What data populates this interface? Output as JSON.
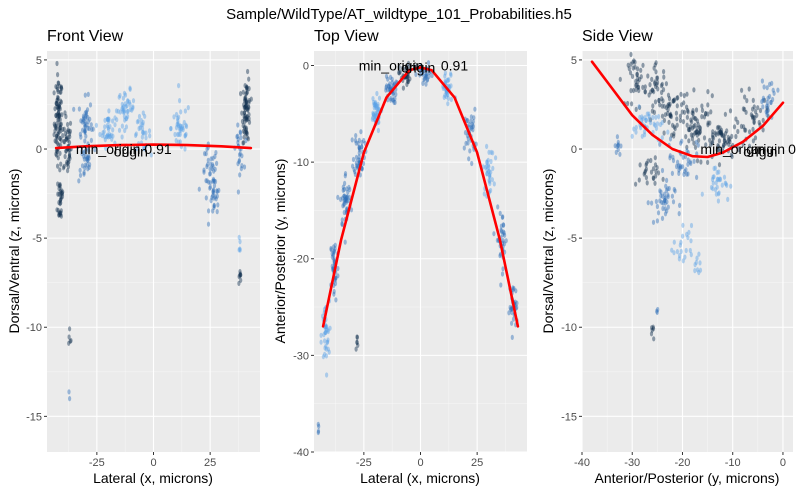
{
  "figure_title": "Sample/WildType/AT_wildtype_101_Probabilities.h5",
  "colors": {
    "panel_bg": "#ebebeb",
    "grid_major": "#ffffff",
    "fit_line": "#ff0000",
    "points_light": "#5aa2e6",
    "points_mid": "#2f6fb8",
    "points_dark": "#12304f"
  },
  "chart_data": [
    {
      "type": "scatter",
      "title": "Front View",
      "xlabel": "Lateral (x, microns)",
      "ylabel": "Dorsal/Ventral (z, microns)",
      "xlim": [
        -47,
        47
      ],
      "ylim": [
        -17,
        5.5
      ],
      "xticks": [
        -25,
        0,
        25
      ],
      "yticks": [
        -15,
        -10,
        -5,
        0,
        5
      ],
      "grid": true,
      "fit_line": [
        [
          -43,
          0.05
        ],
        [
          -30,
          0.15
        ],
        [
          -15,
          0.22
        ],
        [
          0,
          0.25
        ],
        [
          15,
          0.22
        ],
        [
          30,
          0.15
        ],
        [
          43,
          0.05
        ]
      ],
      "annotations": [
        {
          "text": "min_origin",
          "x": -20,
          "y": 0
        },
        {
          "text": "origin",
          "x": -10,
          "y": -0.15
        },
        {
          "text": "0.91",
          "x": 2,
          "y": 0
        }
      ],
      "clusters": [
        {
          "x": -42,
          "y": 1.5,
          "sx": 1.5,
          "sy": 2.2,
          "n": 90,
          "shade": "dark"
        },
        {
          "x": -38,
          "y": 0.2,
          "sx": 1.5,
          "sy": 1.4,
          "n": 45,
          "shade": "dark"
        },
        {
          "x": -41,
          "y": -2.8,
          "sx": 1.2,
          "sy": 1.2,
          "n": 30,
          "shade": "dark"
        },
        {
          "x": -30,
          "y": 1.4,
          "sx": 2.5,
          "sy": 1.2,
          "n": 45,
          "shade": "mid"
        },
        {
          "x": -20,
          "y": 1.2,
          "sx": 3,
          "sy": 0.9,
          "n": 40,
          "shade": "light"
        },
        {
          "x": -12,
          "y": 2.3,
          "sx": 3,
          "sy": 0.8,
          "n": 40,
          "shade": "light"
        },
        {
          "x": -5,
          "y": 0.9,
          "sx": 3,
          "sy": 0.8,
          "n": 30,
          "shade": "light"
        },
        {
          "x": -30,
          "y": -0.9,
          "sx": 2.5,
          "sy": 0.8,
          "n": 25,
          "shade": "mid"
        },
        {
          "x": 12,
          "y": 1.2,
          "sx": 3.5,
          "sy": 1.2,
          "n": 40,
          "shade": "light"
        },
        {
          "x": 25,
          "y": -1.5,
          "sx": 3,
          "sy": 1.4,
          "n": 40,
          "shade": "mid"
        },
        {
          "x": 27,
          "y": -3,
          "sx": 2,
          "sy": 0.8,
          "n": 20,
          "shade": "mid"
        },
        {
          "x": 41,
          "y": 2.2,
          "sx": 1.5,
          "sy": 1.5,
          "n": 70,
          "shade": "dark"
        },
        {
          "x": 38,
          "y": 0,
          "sx": 1.5,
          "sy": 1,
          "n": 25,
          "shade": "mid"
        },
        {
          "x": 38,
          "y": -7.2,
          "sx": 0.6,
          "sy": 0.5,
          "n": 8,
          "shade": "dark"
        },
        {
          "x": 38,
          "y": -5.5,
          "sx": 0.5,
          "sy": 0.6,
          "n": 5,
          "shade": "light"
        },
        {
          "x": -37,
          "y": -10.5,
          "sx": 0.6,
          "sy": 0.4,
          "n": 5,
          "shade": "dark"
        },
        {
          "x": -37,
          "y": -13.8,
          "sx": 0.3,
          "sy": 0.2,
          "n": 2,
          "shade": "mid"
        }
      ]
    },
    {
      "type": "scatter",
      "title": "Top View",
      "xlabel": "Lateral (x, microns)",
      "ylabel": "Anterior/Posterior (y, microns)",
      "xlim": [
        -47,
        47
      ],
      "ylim": [
        -40,
        1.5
      ],
      "xticks": [
        -25,
        0,
        25
      ],
      "yticks": [
        -40,
        -30,
        -20,
        -10,
        0
      ],
      "grid": true,
      "fit_line": [
        [
          -43,
          -27
        ],
        [
          -35,
          -18
        ],
        [
          -25,
          -9
        ],
        [
          -15,
          -3.3
        ],
        [
          -5,
          -0.5
        ],
        [
          0,
          -0.2
        ],
        [
          5,
          -0.5
        ],
        [
          15,
          -3.3
        ],
        [
          25,
          -9
        ],
        [
          35,
          -18
        ],
        [
          43,
          -27
        ]
      ],
      "annotations": [
        {
          "text": "min_origin",
          "x": -13,
          "y": 0
        },
        {
          "text": "origin",
          "x": -1,
          "y": -0.2
        },
        {
          "text": "0.91",
          "x": 15,
          "y": 0
        }
      ],
      "clusters": [
        {
          "x": -42,
          "y": -28,
          "sx": 1.5,
          "sy": 3,
          "n": 40,
          "shade": "light"
        },
        {
          "x": -38,
          "y": -21,
          "sx": 1.5,
          "sy": 3,
          "n": 40,
          "shade": "mid"
        },
        {
          "x": -33,
          "y": -14,
          "sx": 2,
          "sy": 2.5,
          "n": 45,
          "shade": "mid"
        },
        {
          "x": -27,
          "y": -9,
          "sx": 2,
          "sy": 2,
          "n": 45,
          "shade": "mid"
        },
        {
          "x": -20,
          "y": -5,
          "sx": 2,
          "sy": 1.5,
          "n": 45,
          "shade": "light"
        },
        {
          "x": -13,
          "y": -2.5,
          "sx": 2,
          "sy": 1.2,
          "n": 40,
          "shade": "mid"
        },
        {
          "x": -7,
          "y": -1,
          "sx": 2,
          "sy": 1,
          "n": 30,
          "shade": "dark"
        },
        {
          "x": 2,
          "y": -1,
          "sx": 3,
          "sy": 1,
          "n": 30,
          "shade": "mid"
        },
        {
          "x": 12,
          "y": -2.5,
          "sx": 2.5,
          "sy": 1.5,
          "n": 35,
          "shade": "light"
        },
        {
          "x": 22,
          "y": -7,
          "sx": 2,
          "sy": 2,
          "n": 35,
          "shade": "mid"
        },
        {
          "x": 30,
          "y": -11,
          "sx": 2,
          "sy": 2,
          "n": 35,
          "shade": "light"
        },
        {
          "x": 36,
          "y": -18,
          "sx": 2,
          "sy": 2.5,
          "n": 35,
          "shade": "mid"
        },
        {
          "x": 41,
          "y": -25,
          "sx": 1.5,
          "sy": 2,
          "n": 35,
          "shade": "mid"
        },
        {
          "x": -45,
          "y": -37.5,
          "sx": 0.4,
          "sy": 0.5,
          "n": 4,
          "shade": "mid"
        },
        {
          "x": -28,
          "y": -28.5,
          "sx": 0.5,
          "sy": 0.5,
          "n": 6,
          "shade": "dark"
        }
      ]
    },
    {
      "type": "scatter",
      "title": "Side View",
      "xlabel": "Anterior/Posterior (y, microns)",
      "ylabel": "Dorsal/Ventral (z, microns)",
      "xlim": [
        -40,
        2
      ],
      "ylim": [
        -17,
        5.5
      ],
      "xticks": [
        -40,
        -30,
        -20,
        -10,
        0
      ],
      "yticks": [
        -15,
        -10,
        -5,
        0,
        5
      ],
      "grid": true,
      "fit_line": [
        [
          -38,
          4.9
        ],
        [
          -34,
          3.4
        ],
        [
          -30,
          1.9
        ],
        [
          -26,
          0.8
        ],
        [
          -22,
          0.0
        ],
        [
          -18,
          -0.4
        ],
        [
          -15,
          -0.45
        ],
        [
          -12,
          -0.2
        ],
        [
          -8,
          0.4
        ],
        [
          -4,
          1.3
        ],
        [
          0,
          2.6
        ]
      ],
      "annotations": [
        {
          "text": "min_origin",
          "x": -10,
          "y": 0
        },
        {
          "text": "origin",
          "x": -4.5,
          "y": -0.15
        },
        {
          "text": "origin",
          "x": -3,
          "y": 0
        },
        {
          "text": "0",
          "x": 1.8,
          "y": 0
        }
      ],
      "clusters": [
        {
          "x": -29,
          "y": 3.8,
          "sx": 1.5,
          "sy": 1.2,
          "n": 40,
          "shade": "dark"
        },
        {
          "x": -25,
          "y": 3.4,
          "sx": 1.8,
          "sy": 1,
          "n": 35,
          "shade": "dark"
        },
        {
          "x": -22,
          "y": 2.2,
          "sx": 2.5,
          "sy": 1,
          "n": 45,
          "shade": "dark"
        },
        {
          "x": -27,
          "y": 1.3,
          "sx": 2.5,
          "sy": 0.8,
          "n": 40,
          "shade": "light"
        },
        {
          "x": -17,
          "y": 1.2,
          "sx": 3,
          "sy": 1.3,
          "n": 70,
          "shade": "dark"
        },
        {
          "x": -12,
          "y": 0.4,
          "sx": 3,
          "sy": 1,
          "n": 60,
          "shade": "dark"
        },
        {
          "x": -6,
          "y": 1.8,
          "sx": 2.5,
          "sy": 1,
          "n": 40,
          "shade": "dark"
        },
        {
          "x": -3,
          "y": 2.8,
          "sx": 1.5,
          "sy": 1,
          "n": 25,
          "shade": "mid"
        },
        {
          "x": -20,
          "y": -0.5,
          "sx": 2.5,
          "sy": 1,
          "n": 40,
          "shade": "mid"
        },
        {
          "x": -13,
          "y": -1.8,
          "sx": 2,
          "sy": 0.8,
          "n": 30,
          "shade": "light"
        },
        {
          "x": -24,
          "y": -3,
          "sx": 2,
          "sy": 1,
          "n": 40,
          "shade": "mid"
        },
        {
          "x": -27,
          "y": -1.5,
          "sx": 2,
          "sy": 0.8,
          "n": 25,
          "shade": "dark"
        },
        {
          "x": -20,
          "y": -5.5,
          "sx": 1.5,
          "sy": 1,
          "n": 20,
          "shade": "light"
        },
        {
          "x": -17,
          "y": -6.5,
          "sx": 0.8,
          "sy": 0.6,
          "n": 10,
          "shade": "light"
        },
        {
          "x": -33,
          "y": 0.2,
          "sx": 0.6,
          "sy": 0.6,
          "n": 10,
          "shade": "mid"
        },
        {
          "x": -26,
          "y": -10.5,
          "sx": 0.5,
          "sy": 0.5,
          "n": 6,
          "shade": "dark"
        },
        {
          "x": -25,
          "y": -9,
          "sx": 0.3,
          "sy": 0.3,
          "n": 3,
          "shade": "mid"
        }
      ]
    }
  ]
}
